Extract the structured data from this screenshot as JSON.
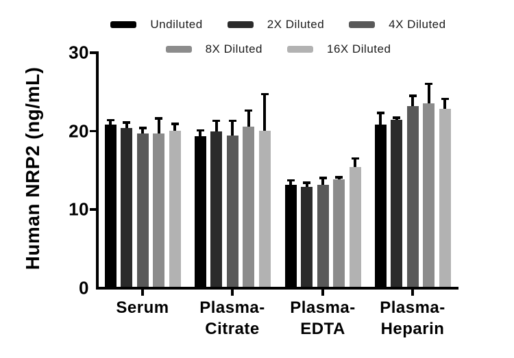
{
  "figure": {
    "background": "#ffffff",
    "axis_color": "#000000",
    "error_bar_color": "#000000"
  },
  "chart_data": {
    "type": "bar",
    "title": "",
    "xlabel": "",
    "ylabel": "Human NRP2 (ng/mL)",
    "ylim": [
      0,
      30
    ],
    "yticks": [
      0,
      10,
      20,
      30
    ],
    "grid": false,
    "legend_position": "top",
    "legend_rows": [
      [
        "Undiluted",
        "2X Diluted",
        "4X Diluted"
      ],
      [
        "8X Diluted",
        "16X Diluted"
      ]
    ],
    "categories": [
      "Serum",
      "Plasma-Citrate",
      "Plasma-EDTA",
      "Plasma-Heparin"
    ],
    "series": [
      {
        "name": "Undiluted",
        "color": "#000000",
        "values": [
          20.7,
          19.2,
          13.0,
          20.7
        ],
        "errors": [
          0.7,
          0.9,
          0.7,
          1.6
        ]
      },
      {
        "name": "2X Diluted",
        "color": "#2b2b2b",
        "values": [
          20.2,
          19.8,
          12.7,
          21.3
        ],
        "errors": [
          0.9,
          1.5,
          0.7,
          0.4
        ]
      },
      {
        "name": "4X Diluted",
        "color": "#595959",
        "values": [
          19.5,
          19.3,
          13.0,
          23.0
        ],
        "errors": [
          0.9,
          2.0,
          1.0,
          1.5
        ]
      },
      {
        "name": "8X Diluted",
        "color": "#8c8c8c",
        "values": [
          19.5,
          20.4,
          13.7,
          23.4
        ],
        "errors": [
          2.1,
          2.2,
          0.4,
          2.6
        ]
      },
      {
        "name": "16X Diluted",
        "color": "#b2b2b2",
        "values": [
          19.9,
          19.9,
          15.3,
          22.7
        ],
        "errors": [
          1.0,
          4.8,
          1.2,
          1.4
        ]
      }
    ]
  }
}
